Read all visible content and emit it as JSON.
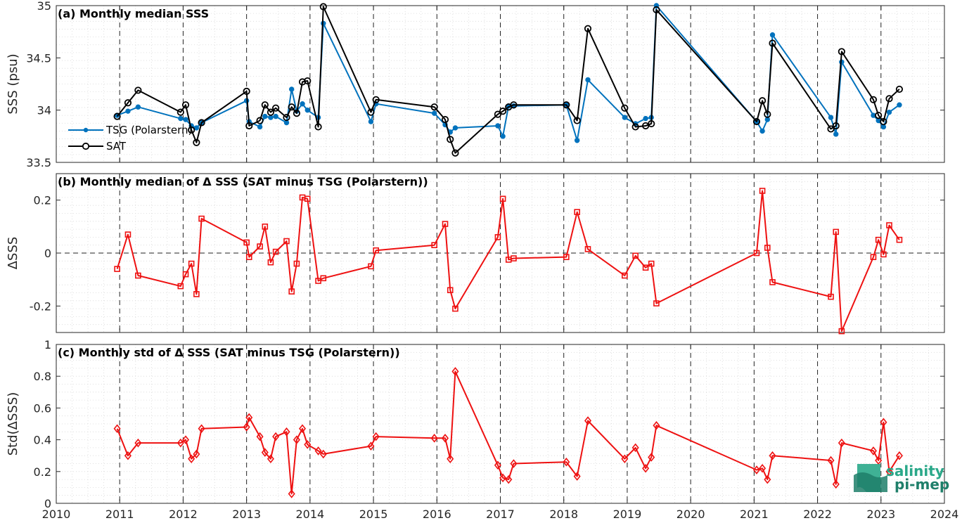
{
  "colors": {
    "tsg": "#0072BD",
    "sat": "#000000",
    "delta": "#EE1111",
    "logo_top": "#2aa889",
    "logo_bottom": "#1f7f6a"
  },
  "logo": {
    "line1": "salinity",
    "line2": "pi-mep"
  },
  "chart_data": [
    {
      "type": "line",
      "title": "(a) Monthly median SSS",
      "ylabel": "SSS (psu)",
      "xlim": [
        2010,
        2024
      ],
      "ylim": [
        33.5,
        35
      ],
      "yticks": [
        "33.5",
        "34",
        "34.5",
        "35"
      ],
      "legend_position": "left",
      "series": [
        {
          "name": "TSG (Polarstern)",
          "marker": "dot",
          "x": [
            2010.96,
            2011.13,
            2011.29,
            2011.96,
            2012.04,
            2012.13,
            2012.21,
            2012.29,
            2013.0,
            2013.04,
            2013.21,
            2013.29,
            2013.38,
            2013.46,
            2013.63,
            2013.71,
            2013.79,
            2013.88,
            2013.96,
            2014.13,
            2014.21,
            2014.96,
            2015.04,
            2015.96,
            2016.13,
            2016.21,
            2016.29,
            2016.96,
            2017.04,
            2017.13,
            2017.21,
            2018.04,
            2018.21,
            2018.38,
            2018.96,
            2019.13,
            2019.29,
            2019.38,
            2019.46,
            2021.04,
            2021.13,
            2021.21,
            2021.29,
            2022.21,
            2022.29,
            2022.38,
            2022.88,
            2022.96,
            2023.04,
            2023.13,
            2023.29
          ],
          "y": [
            33.95,
            33.99,
            34.03,
            33.92,
            33.91,
            33.85,
            33.83,
            33.88,
            34.09,
            33.89,
            33.84,
            33.94,
            33.93,
            33.94,
            33.88,
            34.2,
            33.99,
            34.06,
            34.0,
            33.93,
            34.83,
            33.89,
            34.06,
            33.97,
            33.86,
            33.79,
            33.83,
            33.85,
            33.75,
            34.04,
            34.04,
            34.05,
            33.71,
            34.29,
            33.93,
            33.87,
            33.92,
            33.93,
            35.0,
            33.89,
            33.8,
            33.91,
            34.72,
            33.93,
            33.77,
            34.46,
            33.95,
            33.9,
            33.84,
            33.98,
            34.05
          ]
        },
        {
          "name": "SAT",
          "marker": "circle",
          "x": [
            2010.96,
            2011.13,
            2011.29,
            2011.96,
            2012.04,
            2012.13,
            2012.21,
            2012.29,
            2013.0,
            2013.04,
            2013.21,
            2013.29,
            2013.38,
            2013.46,
            2013.63,
            2013.71,
            2013.79,
            2013.88,
            2013.96,
            2014.13,
            2014.21,
            2014.96,
            2015.04,
            2015.96,
            2016.13,
            2016.21,
            2016.29,
            2016.96,
            2017.04,
            2017.13,
            2017.21,
            2018.04,
            2018.21,
            2018.38,
            2018.96,
            2019.13,
            2019.29,
            2019.38,
            2019.46,
            2021.04,
            2021.13,
            2021.21,
            2021.29,
            2022.21,
            2022.29,
            2022.38,
            2022.88,
            2022.96,
            2023.04,
            2023.13,
            2023.29
          ],
          "y": [
            33.94,
            34.07,
            34.19,
            33.98,
            34.05,
            33.81,
            33.69,
            33.88,
            34.18,
            33.85,
            33.9,
            34.05,
            33.98,
            34.02,
            33.93,
            34.03,
            33.97,
            34.27,
            34.28,
            33.84,
            34.99,
            33.98,
            34.1,
            34.03,
            33.91,
            33.72,
            33.59,
            33.96,
            33.99,
            34.03,
            34.05,
            34.05,
            33.9,
            34.78,
            34.02,
            33.84,
            33.85,
            33.87,
            34.96,
            33.89,
            34.09,
            33.96,
            34.64,
            33.82,
            33.85,
            34.56,
            34.1,
            33.95,
            33.89,
            34.11,
            34.2
          ]
        }
      ]
    },
    {
      "type": "line",
      "title": "(b) Monthly median of Δ SSS (SAT minus TSG (Polarstern))",
      "ylabel": "ΔSSS",
      "xlim": [
        2010,
        2024
      ],
      "ylim": [
        -0.3,
        0.3
      ],
      "yticks": [
        "-0.2",
        "0",
        "0.2"
      ],
      "zero_line": true,
      "series": [
        {
          "name": "",
          "marker": "square",
          "x": [
            2010.96,
            2011.13,
            2011.29,
            2011.96,
            2012.04,
            2012.13,
            2012.21,
            2012.29,
            2013.0,
            2013.04,
            2013.21,
            2013.29,
            2013.38,
            2013.46,
            2013.63,
            2013.71,
            2013.79,
            2013.88,
            2013.96,
            2014.13,
            2014.21,
            2014.96,
            2015.04,
            2015.96,
            2016.13,
            2016.21,
            2016.29,
            2016.96,
            2017.04,
            2017.13,
            2017.21,
            2018.04,
            2018.21,
            2018.38,
            2018.96,
            2019.13,
            2019.29,
            2019.38,
            2019.46,
            2021.04,
            2021.13,
            2021.21,
            2021.29,
            2022.21,
            2022.29,
            2022.38,
            2022.88,
            2022.96,
            2023.04,
            2023.13,
            2023.29
          ],
          "y": [
            -0.06,
            0.07,
            -0.085,
            -0.125,
            -0.08,
            -0.04,
            -0.155,
            0.13,
            0.04,
            -0.015,
            0.025,
            0.1,
            -0.035,
            0.005,
            0.045,
            -0.145,
            -0.04,
            0.21,
            0.205,
            -0.105,
            -0.095,
            -0.05,
            0.01,
            0.03,
            0.11,
            -0.14,
            -0.21,
            0.06,
            0.205,
            -0.025,
            -0.02,
            -0.015,
            0.155,
            0.015,
            -0.085,
            -0.01,
            -0.055,
            -0.04,
            -0.19,
            0.0,
            0.235,
            0.02,
            -0.11,
            -0.165,
            0.08,
            -0.295,
            -0.015,
            0.05,
            -0.005,
            0.105,
            0.05
          ]
        }
      ]
    },
    {
      "type": "line",
      "title": "(c) Monthly std of Δ SSS (SAT minus TSG (Polarstern))",
      "ylabel": "Std(ΔSSS)",
      "xlabel": "",
      "xlim": [
        2010,
        2024
      ],
      "ylim": [
        0,
        1
      ],
      "yticks": [
        "0",
        "0.2",
        "0.4",
        "0.6",
        "0.8",
        "1"
      ],
      "xticks": [
        "2010",
        "2011",
        "2012",
        "2013",
        "2014",
        "2015",
        "2016",
        "2017",
        "2018",
        "2019",
        "2020",
        "2021",
        "2022",
        "2023",
        "2024"
      ],
      "series": [
        {
          "name": "",
          "marker": "diamond",
          "x": [
            2010.96,
            2011.13,
            2011.29,
            2011.96,
            2012.04,
            2012.13,
            2012.21,
            2012.29,
            2013.0,
            2013.04,
            2013.21,
            2013.29,
            2013.38,
            2013.46,
            2013.63,
            2013.71,
            2013.79,
            2013.88,
            2013.96,
            2014.13,
            2014.21,
            2014.96,
            2015.04,
            2015.96,
            2016.13,
            2016.21,
            2016.29,
            2016.96,
            2017.04,
            2017.13,
            2017.21,
            2018.04,
            2018.21,
            2018.38,
            2018.96,
            2019.13,
            2019.29,
            2019.38,
            2019.46,
            2021.04,
            2021.13,
            2021.21,
            2021.29,
            2022.21,
            2022.29,
            2022.38,
            2022.88,
            2022.96,
            2023.04,
            2023.13,
            2023.29
          ],
          "y": [
            0.47,
            0.3,
            0.38,
            0.38,
            0.4,
            0.28,
            0.31,
            0.47,
            0.48,
            0.54,
            0.42,
            0.32,
            0.28,
            0.42,
            0.45,
            0.06,
            0.4,
            0.47,
            0.37,
            0.33,
            0.31,
            0.36,
            0.42,
            0.41,
            0.41,
            0.28,
            0.83,
            0.24,
            0.16,
            0.15,
            0.25,
            0.26,
            0.17,
            0.52,
            0.28,
            0.35,
            0.22,
            0.29,
            0.49,
            0.21,
            0.22,
            0.15,
            0.3,
            0.27,
            0.12,
            0.38,
            0.33,
            0.27,
            0.51,
            0.2,
            0.3
          ]
        }
      ]
    }
  ]
}
